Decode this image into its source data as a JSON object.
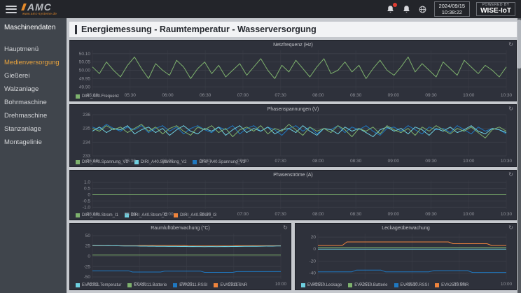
{
  "topbar": {
    "logo_text": "AMC",
    "logo_sub": "www.amc-systeme.de",
    "date": "2024/09/15",
    "time": "10:38:22",
    "powered_line1": "POWERED BY",
    "powered_line2": "WISE-IoT"
  },
  "sidebar": {
    "header": "Maschinendaten",
    "items": [
      {
        "label": "Hauptmenü",
        "active": false
      },
      {
        "label": "Medienversorgung",
        "active": true
      },
      {
        "label": "Gießerei",
        "active": false
      },
      {
        "label": "Walzanlage",
        "active": false
      },
      {
        "label": "Bohrmaschine",
        "active": false
      },
      {
        "label": "Drehmaschine",
        "active": false
      },
      {
        "label": "Stanzanlage",
        "active": false
      },
      {
        "label": "Montagelinie",
        "active": false
      }
    ]
  },
  "page": {
    "title": "Energiemessung - Raumtemperatur - Wasserversorgung"
  },
  "colors": {
    "accent_orange": "#e8a33d",
    "badge_red": "#e03c31",
    "panel_bg": "#2e313b"
  },
  "chart_data": [
    {
      "type": "line",
      "title": "Netzfrequenz (Hz)",
      "ylim": [
        49.88,
        50.12
      ],
      "yticks": [
        50.1,
        50.05,
        50.0,
        49.95,
        49.9
      ],
      "ytick_labels": [
        "50.10",
        "50.05",
        "50.00",
        "49.95",
        "49.90"
      ],
      "xticks": [
        "05:00",
        "05:30",
        "06:00",
        "06:30",
        "07:00",
        "07:30",
        "08:00",
        "08:30",
        "09:00",
        "09:30",
        "10:00",
        "10:30"
      ],
      "series": [
        {
          "name": "DIRI_A40.Frequenz",
          "color": "#7eb26d",
          "values": [
            50.02,
            49.98,
            50.05,
            50.0,
            49.96,
            50.03,
            50.08,
            50.01,
            49.95,
            50.04,
            50.0,
            49.97,
            50.06,
            50.02,
            49.95,
            50.01,
            50.05,
            49.98,
            50.03,
            49.96,
            50.0,
            50.04,
            49.97,
            50.02,
            50.07,
            50.0,
            49.95,
            50.03,
            49.99,
            50.06,
            50.01,
            49.96,
            50.02,
            50.07,
            49.98,
            50.0,
            50.05,
            49.99,
            50.03,
            49.95,
            50.01,
            50.06,
            50.0,
            49.97,
            50.02,
            50.08,
            49.99,
            50.04,
            50.0,
            49.96,
            50.05,
            50.01,
            49.97,
            50.06,
            50.02,
            49.98,
            50.03,
            50.0,
            49.96,
            50.02
          ]
        }
      ]
    },
    {
      "type": "line",
      "title": "Phasenspannungen (V)",
      "ylim": [
        233,
        236
      ],
      "yticks": [
        236,
        235,
        234,
        233
      ],
      "ytick_labels": [
        "236",
        "235",
        "234",
        "233"
      ],
      "xticks": [
        "05:00",
        "05:30",
        "06:00",
        "06:30",
        "07:00",
        "07:30",
        "08:00",
        "08:30",
        "09:00",
        "09:30",
        "10:00",
        "10:30"
      ],
      "series": [
        {
          "name": "DIRI_A40.Spannung_V1",
          "color": "#7eb26d",
          "values": [
            235.0,
            234.8,
            235.2,
            234.9,
            235.1,
            234.7,
            235.0,
            235.3,
            234.8,
            235.1,
            234.6,
            235.0,
            235.2,
            234.8,
            234.5,
            235.1,
            234.9,
            235.2,
            234.7,
            235.0,
            234.4,
            234.9,
            235.1,
            234.8,
            235.2,
            234.6,
            235.0,
            234.8,
            235.3,
            234.9,
            234.5,
            235.1,
            234.8,
            235.0,
            234.7,
            235.2,
            234.9,
            234.4,
            235.0,
            234.8,
            235.1,
            234.6,
            235.2,
            234.9,
            234.7,
            235.0,
            234.5,
            235.1,
            234.8,
            235.2,
            234.9,
            234.6,
            235.0,
            234.8,
            235.1,
            234.7,
            234.3,
            234.9,
            235.1,
            234.8
          ]
        },
        {
          "name": "DIRI_A40.Spannung_V2",
          "color": "#6ed0e0",
          "values": [
            234.8,
            235.1,
            234.7,
            235.0,
            234.9,
            235.2,
            234.6,
            234.9,
            235.1,
            234.7,
            235.0,
            234.5,
            234.9,
            235.2,
            234.8,
            234.6,
            235.0,
            234.8,
            235.1,
            234.5,
            234.9,
            235.2,
            234.7,
            235.0,
            234.8,
            235.1,
            234.6,
            234.9,
            235.0,
            234.7,
            235.2,
            234.8,
            234.5,
            235.0,
            234.9,
            234.6,
            235.1,
            234.8,
            235.0,
            234.7,
            234.4,
            234.9,
            235.1,
            234.8,
            235.0,
            234.6,
            235.1,
            234.9,
            234.5,
            235.0,
            234.8,
            235.1,
            234.7,
            234.9,
            235.2,
            234.8,
            234.6,
            235.0,
            234.9,
            234.7
          ]
        },
        {
          "name": "DIRI_A40.Spannung_V3",
          "color": "#1f78c1",
          "values": [
            235.1,
            234.9,
            235.3,
            235.0,
            234.8,
            235.1,
            234.9,
            235.2,
            234.7,
            235.0,
            235.2,
            234.8,
            235.1,
            234.6,
            235.0,
            235.2,
            234.9,
            234.7,
            235.1,
            234.9,
            235.2,
            234.6,
            235.0,
            235.2,
            234.8,
            235.1,
            234.9,
            234.5,
            235.0,
            235.2,
            234.8,
            235.1,
            234.6,
            235.0,
            234.9,
            235.2,
            234.7,
            235.1,
            234.9,
            235.2,
            234.8,
            234.5,
            235.0,
            235.1,
            234.8,
            235.2,
            234.9,
            234.6,
            235.1,
            234.9,
            235.0,
            234.7,
            235.2,
            234.9,
            234.6,
            235.1,
            234.8,
            235.0,
            234.9,
            234.6
          ]
        }
      ]
    },
    {
      "type": "line",
      "title": "Phasenströme (A)",
      "ylim": [
        -1.15,
        1.15
      ],
      "yticks": [
        1.0,
        0.5,
        0,
        -0.5,
        -1.0
      ],
      "ytick_labels": [
        "1.0",
        "0.5",
        "0",
        "-0.5",
        "-1.0"
      ],
      "xticks": [
        "05:00",
        "05:30",
        "06:00",
        "06:30",
        "07:00",
        "07:30",
        "08:00",
        "08:30",
        "09:00",
        "09:30",
        "10:00",
        "10:30"
      ],
      "series": [
        {
          "name": "DIRI_A40.Strom_I1",
          "color": "#7eb26d",
          "values": [
            0,
            0,
            0,
            0,
            0,
            0,
            0,
            0,
            0,
            0,
            0,
            0,
            0
          ]
        },
        {
          "name": "DIRI_A40.Strom_I2",
          "color": "#6ed0e0",
          "values": [
            0,
            0,
            0,
            0,
            0,
            0,
            0,
            0,
            0,
            0,
            0,
            0,
            0
          ]
        },
        {
          "name": "DIRI_A40.Strom_I3",
          "color": "#ef843c",
          "values": [
            0,
            0,
            0,
            0,
            0,
            0,
            0,
            0,
            0,
            0,
            0,
            0,
            0
          ]
        }
      ]
    },
    {
      "type": "line",
      "title": "Raumluftüberwachung (°C)",
      "ylim": [
        -55,
        55
      ],
      "yticks": [
        50,
        25,
        0,
        -25,
        -50
      ],
      "ytick_labels": [
        "50",
        "25",
        "0",
        "-25",
        "-50"
      ],
      "xticks": [
        "06:00",
        "07:00",
        "08:00",
        "09:00",
        "10:00"
      ],
      "series": [
        {
          "name": "EVA2311.Temperatur",
          "color": "#6ed0e0",
          "values": [
            26.0,
            25.8,
            25.9,
            25.6,
            25.7,
            25.4,
            25.5,
            25.2,
            25.0,
            25.1,
            24.8,
            24.9,
            24.6,
            24.7,
            24.4,
            24.5,
            24.2,
            24.0,
            24.1,
            23.9,
            23.8,
            23.9,
            23.7,
            23.8,
            23.6,
            23.7,
            23.5,
            23.6,
            23.4,
            23.5,
            23.6,
            23.4,
            23.5,
            23.7,
            23.6,
            23.8,
            23.7,
            23.9,
            24.0,
            24.1,
            24.3,
            24.2,
            24.4,
            24.5,
            24.7,
            24.6,
            24.8,
            24.9
          ]
        },
        {
          "name": "EVA2311.Batterie",
          "color": "#7eb26d",
          "values": [
            3.1,
            3.1
          ]
        },
        {
          "name": "EVA2311.RSSI",
          "color": "#1f78c1",
          "values": [
            -35,
            -35,
            -35,
            -35,
            -35,
            -35,
            -35,
            -35,
            -35,
            -35,
            -38,
            -38,
            -38,
            -38,
            -38,
            -38,
            -38,
            -38,
            -36,
            -36,
            -36,
            -36,
            -36,
            -36,
            -36,
            -36,
            -36,
            -36,
            -39,
            -39,
            -39,
            -39,
            -39,
            -39,
            -39,
            -39,
            -37,
            -37,
            -37,
            -37,
            -37,
            -37,
            -37,
            -37,
            -37,
            -37,
            -37,
            -37
          ]
        },
        {
          "name": "EVA2311.SNR",
          "color": "#ef843c",
          "values": [
            25.5,
            25.5,
            25.5,
            25.5,
            25.5,
            25.5,
            25.5,
            25.5,
            25.5,
            25.5,
            25.5,
            25.5,
            26,
            26,
            26,
            26,
            26,
            26,
            26,
            26,
            26,
            26,
            26,
            26,
            25,
            25,
            25,
            25,
            25,
            25,
            25,
            25,
            25,
            25,
            25,
            25,
            25.5,
            25.5,
            25.5,
            25.5,
            25.5,
            25.5,
            25.5,
            25.5,
            25.5,
            25.5,
            25.5,
            25.5
          ]
        }
      ]
    },
    {
      "type": "line",
      "title": "Leckageüberwachung",
      "ylim": [
        -50,
        26
      ],
      "yticks": [
        20,
        0,
        -20,
        -40
      ],
      "ytick_labels": [
        "20",
        "0",
        "-20",
        "-40"
      ],
      "xticks": [
        "06:00",
        "07:00",
        "08:00",
        "09:00",
        "10:00"
      ],
      "series": [
        {
          "name": "EVA2510.Leckage",
          "color": "#6ed0e0",
          "values": [
            0,
            0
          ]
        },
        {
          "name": "EVA2510.Batterie",
          "color": "#7eb26d",
          "values": [
            3.0,
            3.0
          ]
        },
        {
          "name": "EVA2510.RSSI",
          "color": "#1f78c1",
          "values": [
            -38,
            -38,
            -38,
            -38,
            -38,
            -38,
            -38,
            -38,
            -35,
            -35,
            -35,
            -35,
            -35,
            -35,
            -38,
            -38,
            -38,
            -38,
            -38,
            -38,
            -38,
            -38,
            -38,
            -38,
            -36,
            -36,
            -36,
            -36,
            -36,
            -36,
            -36,
            -36,
            -39,
            -39,
            -39,
            -39,
            -39,
            -39,
            -39,
            -39
          ]
        },
        {
          "name": "EVA2510.SNR",
          "color": "#ef843c",
          "values": [
            6,
            6,
            6,
            6,
            6,
            6,
            12,
            12,
            12,
            12,
            12,
            12,
            12,
            12,
            12,
            12,
            12,
            12,
            12,
            12,
            12,
            12,
            12,
            12,
            12,
            12,
            12,
            12,
            9,
            9,
            9,
            9,
            9,
            9,
            9,
            9,
            6,
            6,
            6,
            6
          ]
        }
      ]
    }
  ]
}
